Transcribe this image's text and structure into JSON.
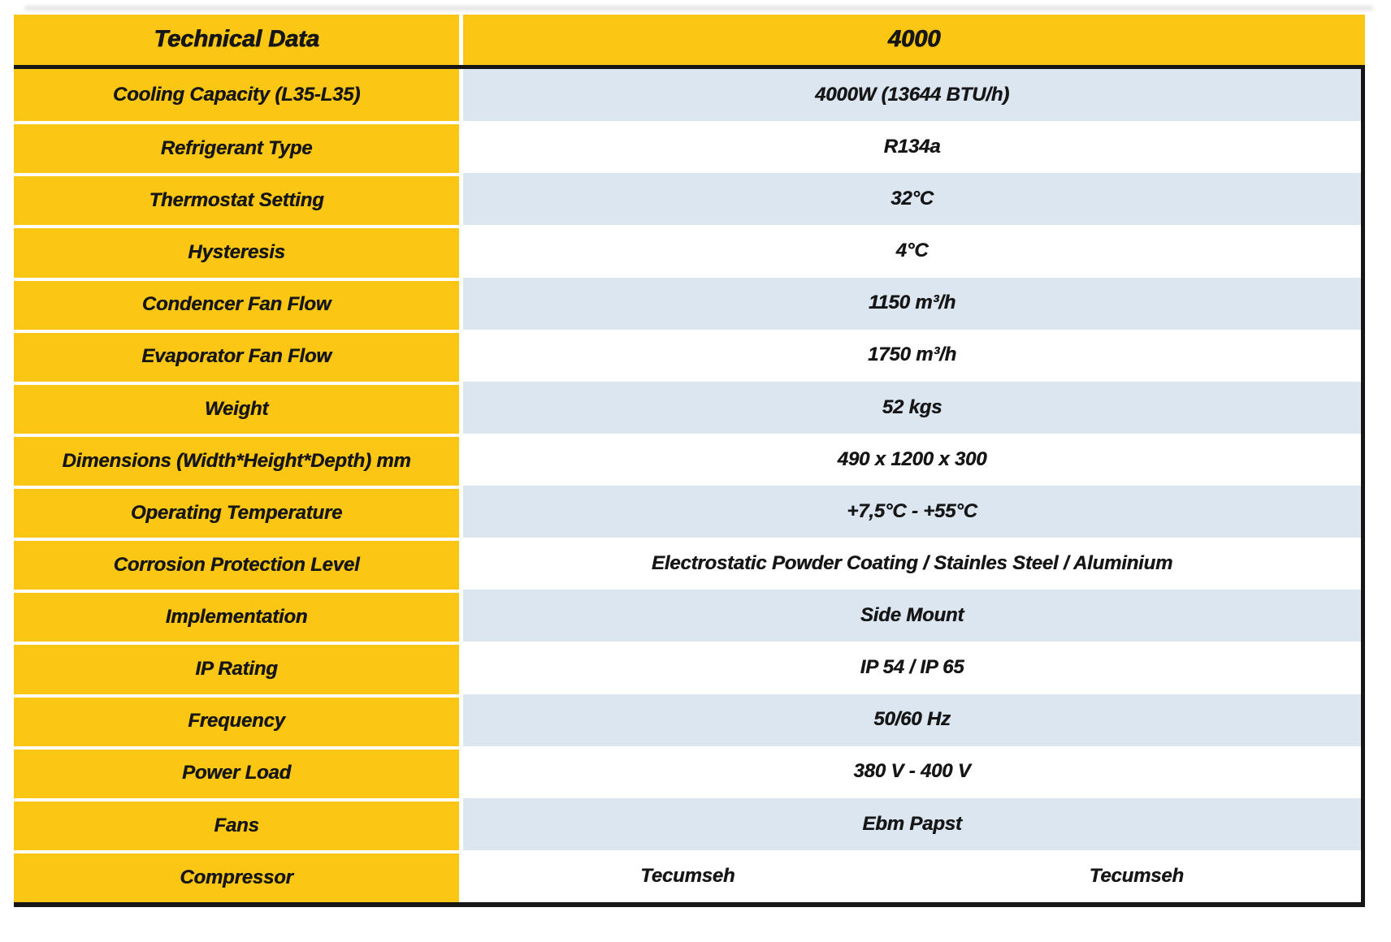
{
  "table": {
    "header": {
      "label": "Technical Data",
      "value": "4000"
    },
    "rows": [
      {
        "label": "Cooling Capacity (L35-L35)",
        "value": "4000W (13644 BTU/h)"
      },
      {
        "label": "Refrigerant Type",
        "value": "R134a"
      },
      {
        "label": "Thermostat Setting",
        "value": "32°C"
      },
      {
        "label": "Hysteresis",
        "value": "4°C"
      },
      {
        "label": "Condencer Fan Flow",
        "value": "1150 m³/h"
      },
      {
        "label": "Evaporator Fan Flow",
        "value": "1750 m³/h"
      },
      {
        "label": "Weight",
        "value": "52 kgs"
      },
      {
        "label": "Dimensions (Width*Height*Depth) mm",
        "value": "490 x 1200 x 300"
      },
      {
        "label": "Operating Temperature",
        "value": "+7,5°C - +55°C"
      },
      {
        "label": "Corrosion Protection Level",
        "value": "Electrostatic Powder Coating / Stainles Steel / Aluminium"
      },
      {
        "label": "Implementation",
        "value": "Side Mount"
      },
      {
        "label": "IP Rating",
        "value": "IP 54 / IP 65"
      },
      {
        "label": "Frequency",
        "value": "50/60 Hz"
      },
      {
        "label": "Power Load",
        "value": "380 V - 400 V"
      },
      {
        "label": "Fans",
        "value": "Ebm Papst"
      },
      {
        "label": "Compressor",
        "values": [
          "Tecumseh",
          "Tecumseh"
        ]
      }
    ],
    "colors": {
      "yellow": "#FCC714",
      "blue": "#DCE6F1",
      "ink": "#161616",
      "paper": "#FFFFFF"
    }
  }
}
